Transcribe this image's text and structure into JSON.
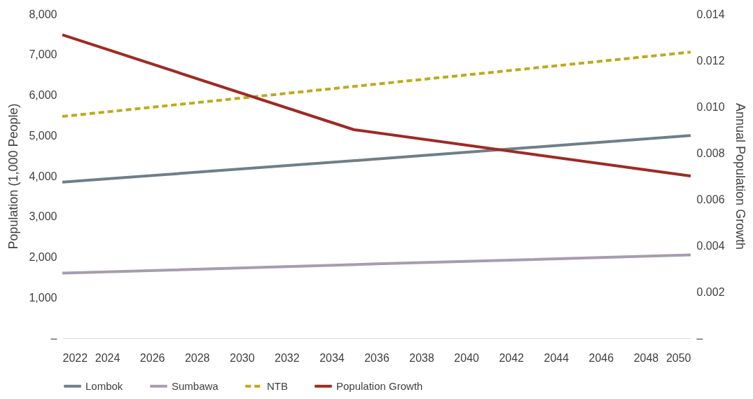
{
  "chart_data": {
    "type": "line",
    "xlabel": null,
    "ylabel": "Population (1,000 People)",
    "y2label": "Annual Population Growth",
    "xlim": [
      2022,
      2050
    ],
    "xticks": [
      2022,
      2024,
      2026,
      2028,
      2030,
      2032,
      2034,
      2036,
      2038,
      2040,
      2042,
      2044,
      2046,
      2048,
      2050
    ],
    "ylim": [
      0,
      8000
    ],
    "yticks": [
      {
        "value": 0,
        "label": "–"
      },
      {
        "value": 1000,
        "label": "1,000"
      },
      {
        "value": 2000,
        "label": "2,000"
      },
      {
        "value": 3000,
        "label": "3,000"
      },
      {
        "value": 4000,
        "label": "4,000"
      },
      {
        "value": 5000,
        "label": "5,000"
      },
      {
        "value": 6000,
        "label": "6,000"
      },
      {
        "value": 7000,
        "label": "7,000"
      },
      {
        "value": 8000,
        "label": "8,000"
      }
    ],
    "y2lim": [
      0,
      0.014
    ],
    "y2ticks": [
      {
        "value": 0,
        "label": "–"
      },
      0.002,
      0.004,
      0.006,
      0.008,
      {
        "value": 0.01,
        "label": "0.010"
      },
      0.012,
      0.014
    ],
    "grid": false,
    "legend": "bottom",
    "marker": "none",
    "series": [
      {
        "name": "Lombok",
        "color": "#6e7f89",
        "x": [
          2022,
          2036,
          2050
        ],
        "values": [
          3850,
          4420,
          5000
        ]
      },
      {
        "name": "Sumbawa",
        "color": "#a89cb0",
        "x": [
          2022,
          2036,
          2050
        ],
        "values": [
          1600,
          1830,
          2050
        ]
      },
      {
        "name": "NTB",
        "color": "#c0a91a",
        "line_style": "dashed",
        "x": [
          2022,
          2036,
          2050
        ],
        "values": [
          5470,
          6270,
          7060
        ]
      },
      {
        "name": "Population Growth",
        "color": "#9e2a24",
        "axis": "y2",
        "x": [
          2022,
          2035,
          2050
        ],
        "values": [
          0.0131,
          0.009,
          0.007
        ]
      }
    ]
  }
}
